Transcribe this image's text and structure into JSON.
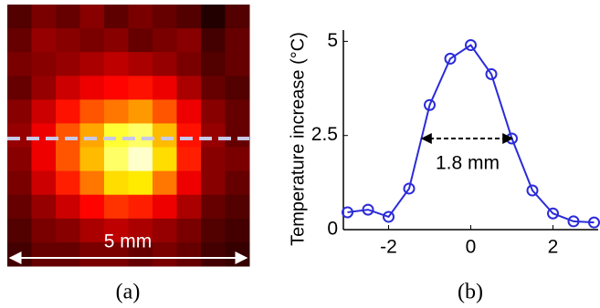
{
  "chart_data": [
    {
      "type": "heatmap",
      "colormap": "hot",
      "z": [
        [
          0.12,
          0.18,
          0.15,
          0.2,
          0.14,
          0.18,
          0.15,
          0.12,
          0.05,
          0.12
        ],
        [
          0.15,
          0.22,
          0.2,
          0.18,
          0.2,
          0.15,
          0.18,
          0.2,
          0.1,
          0.15
        ],
        [
          0.18,
          0.2,
          0.22,
          0.25,
          0.28,
          0.25,
          0.22,
          0.18,
          0.12,
          0.15
        ],
        [
          0.15,
          0.22,
          0.3,
          0.35,
          0.38,
          0.4,
          0.35,
          0.25,
          0.15,
          0.12
        ],
        [
          0.2,
          0.3,
          0.4,
          0.5,
          0.55,
          0.6,
          0.5,
          0.35,
          0.2,
          0.15
        ],
        [
          0.22,
          0.35,
          0.5,
          0.62,
          0.8,
          0.85,
          0.65,
          0.4,
          0.22,
          0.15
        ],
        [
          0.2,
          0.35,
          0.5,
          0.65,
          0.85,
          0.95,
          0.7,
          0.42,
          0.2,
          0.18
        ],
        [
          0.18,
          0.3,
          0.42,
          0.55,
          0.7,
          0.72,
          0.55,
          0.35,
          0.2,
          0.15
        ],
        [
          0.15,
          0.22,
          0.3,
          0.38,
          0.45,
          0.42,
          0.35,
          0.25,
          0.15,
          0.12
        ],
        [
          0.12,
          0.18,
          0.2,
          0.25,
          0.28,
          0.25,
          0.22,
          0.18,
          0.12,
          0.1
        ],
        [
          0.1,
          0.15,
          0.15,
          0.18,
          0.18,
          0.15,
          0.18,
          0.15,
          0.1,
          0.08
        ]
      ],
      "annotation": "5 mm",
      "caption": "(a)"
    },
    {
      "type": "line",
      "ylabel": "Temperature increase (°C)",
      "x": [
        -3,
        -2.5,
        -2,
        -1.5,
        -1,
        -0.5,
        0,
        0.5,
        1,
        1.5,
        2,
        2.5,
        3
      ],
      "series": [
        {
          "color": "#2b2bd9",
          "values": [
            0.46,
            0.53,
            0.34,
            1.09,
            3.31,
            4.54,
            4.9,
            4.13,
            2.42,
            1.04,
            0.43,
            0.22,
            0.19
          ]
        }
      ],
      "xlim": [
        -3.1,
        3.1
      ],
      "ylim": [
        0,
        5.3
      ],
      "xticks": [
        -2,
        0,
        2
      ],
      "yticks": [
        0,
        2.5,
        5
      ],
      "annotation": "1.8 mm",
      "caption": "(b)"
    }
  ]
}
